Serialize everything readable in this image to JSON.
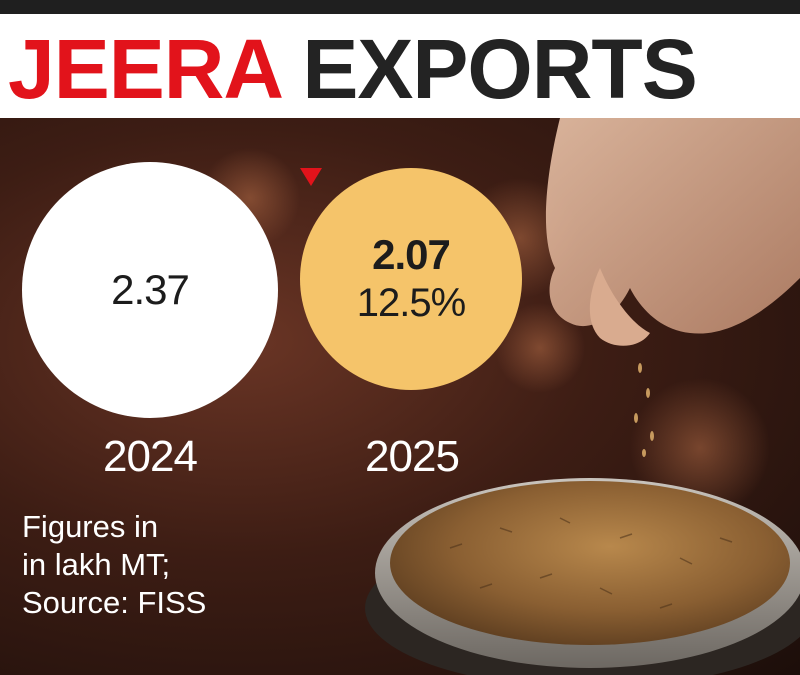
{
  "header": {
    "title_highlight": "JEERA",
    "title_rest": "EXPORTS",
    "highlight_color": "#e2131b",
    "title_color": "#232323"
  },
  "chart_data": {
    "type": "bubble",
    "title": "JEERA EXPORTS",
    "categories": [
      "2024",
      "2025"
    ],
    "values": [
      2.37,
      2.07
    ],
    "value_labels": [
      "2.37",
      "2.07"
    ],
    "change": {
      "direction": "down",
      "label": "12.5%",
      "value": -12.5
    },
    "unit_note": [
      "Figures in",
      "in lakh MT;",
      "Source: FISS"
    ],
    "colors": {
      "2024": "#ffffff",
      "2025": "#f5c46a",
      "arrow": "#e2131b"
    }
  },
  "icons": {
    "change_arrow": "down-triangle-icon"
  }
}
